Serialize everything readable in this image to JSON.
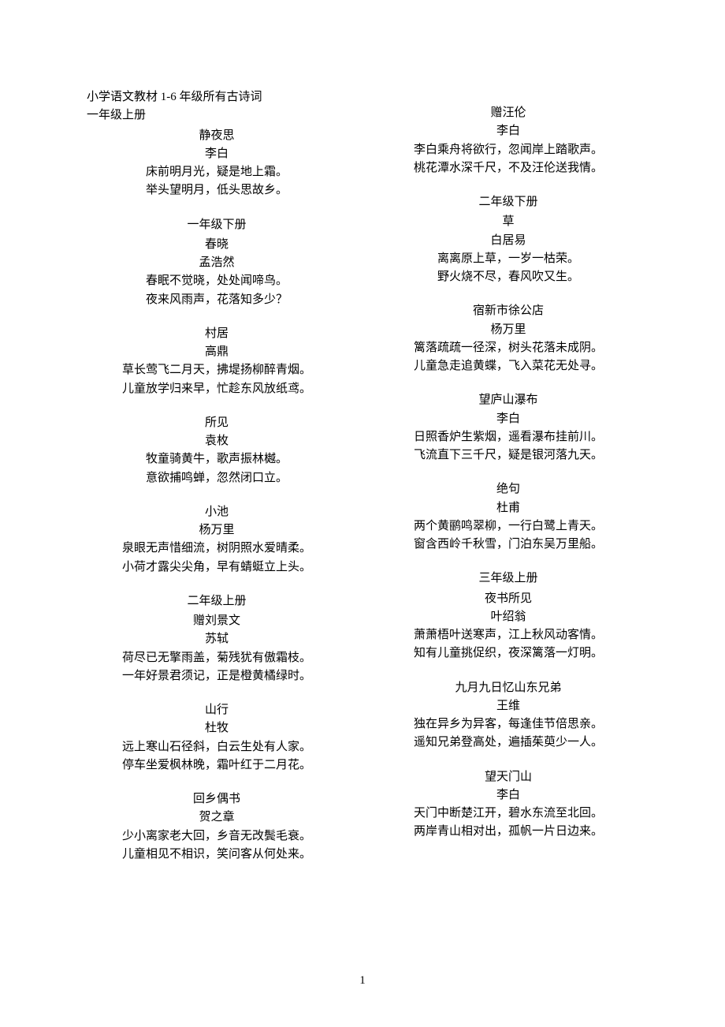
{
  "intro": {
    "line1": "小学语文教材 1-6 年级所有古诗词",
    "line2": "一年级上册"
  },
  "colors": {
    "background": "#ffffff",
    "text": "#000000"
  },
  "typography": {
    "font_family": "SimSun",
    "font_size_pt": 11,
    "line_height": 1.55
  },
  "page_number": "1",
  "left_column": [
    {
      "type": "poem",
      "title": "静夜思",
      "author": "李白",
      "lines": [
        "床前明月光，疑是地上霜。",
        "举头望明月，低头思故乡。"
      ]
    },
    {
      "type": "section",
      "label": "一年级下册"
    },
    {
      "type": "poem",
      "title": "春晓",
      "author": "孟浩然",
      "lines": [
        "春眠不觉晓，处处闻啼鸟。",
        "夜来风雨声，花落知多少？"
      ]
    },
    {
      "type": "poem",
      "title": "村居",
      "author": "高鼎",
      "lines": [
        "草长莺飞二月天，拂堤扬柳醉青烟。",
        "儿童放学归来早，忙趁东风放纸鸢。"
      ]
    },
    {
      "type": "poem",
      "title": "所见",
      "author": "袁枚",
      "lines": [
        "牧童骑黄牛，歌声振林樾。",
        "意欲捕鸣蝉，忽然闭口立。"
      ]
    },
    {
      "type": "poem",
      "title": "小池",
      "author": "杨万里",
      "lines": [
        "泉眼无声惜细流，树阴照水爱晴柔。",
        "小荷才露尖尖角，早有蜻蜓立上头。"
      ]
    },
    {
      "type": "section",
      "label": "二年级上册"
    },
    {
      "type": "poem",
      "title": "赠刘景文",
      "author": "苏轼",
      "lines": [
        "荷尽已无擎雨盖，菊残犹有傲霜枝。",
        "一年好景君须记，正是橙黄橘绿时。"
      ]
    },
    {
      "type": "poem",
      "title": "山行",
      "author": "杜牧",
      "lines": [
        "远上寒山石径斜，白云生处有人家。",
        "停车坐爱枫林晚，霜叶红于二月花。"
      ]
    },
    {
      "type": "poem",
      "title": "回乡偶书",
      "author": "贺之章",
      "lines": [
        "少小离家老大回，乡音无改鬓毛衰。",
        "儿童相见不相识，笑问客从何处来。"
      ]
    }
  ],
  "right_column": [
    {
      "type": "poem",
      "title": "赠汪伦",
      "author": "李白",
      "lines": [
        "李白乘舟将欲行，忽闻岸上踏歌声。",
        "桃花潭水深千尺，不及汪伦送我情。"
      ]
    },
    {
      "type": "section",
      "label": "二年级下册"
    },
    {
      "type": "poem",
      "title": "草",
      "author": "白居易",
      "lines": [
        "离离原上草，一岁一枯荣。",
        "野火烧不尽，春风吹又生。"
      ]
    },
    {
      "type": "poem",
      "title": "宿新市徐公店",
      "author": "杨万里",
      "lines": [
        "篱落疏疏一径深，树头花落未成阴。",
        "儿童急走追黄蝶，飞入菜花无处寻。"
      ]
    },
    {
      "type": "poem",
      "title": "望庐山瀑布",
      "author": "李白",
      "lines": [
        "日照香炉生紫烟，遥看瀑布挂前川。",
        "飞流直下三千尺，疑是银河落九天。"
      ]
    },
    {
      "type": "poem",
      "title": "绝句",
      "author": "杜甫",
      "lines": [
        "两个黄鹂鸣翠柳，一行白鹭上青天。",
        "窗含西岭千秋雪，门泊东吴万里船。"
      ]
    },
    {
      "type": "section",
      "label": "三年级上册"
    },
    {
      "type": "poem",
      "title": "夜书所见",
      "author": "叶绍翁",
      "lines": [
        "萧萧梧叶送寒声，江上秋风动客情。",
        "知有儿童挑促织，夜深篱落一灯明。"
      ]
    },
    {
      "type": "poem",
      "title": "九月九日忆山东兄弟",
      "author": "王维",
      "lines": [
        "独在异乡为异客，每逢佳节倍思亲。",
        "遥知兄弟登高处，遍插茱萸少一人。"
      ]
    },
    {
      "type": "poem",
      "title": "望天门山",
      "author": "李白",
      "lines": [
        "天门中断楚江开，碧水东流至北回。",
        "两岸青山相对出，孤帆一片日边来。"
      ]
    }
  ]
}
